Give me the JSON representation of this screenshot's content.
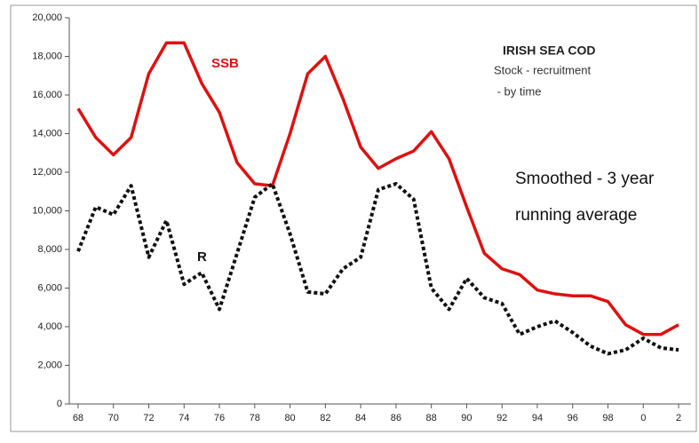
{
  "chart_data": {
    "type": "line",
    "title": "IRISH SEA COD",
    "subtitle": [
      "Stock - recruitment",
      " - by time"
    ],
    "annotation": [
      "Smoothed - 3 year",
      "running average"
    ],
    "x": [
      1968,
      1969,
      1970,
      1971,
      1972,
      1973,
      1974,
      1975,
      1976,
      1977,
      1978,
      1979,
      1980,
      1981,
      1982,
      1983,
      1984,
      1985,
      1986,
      1987,
      1988,
      1989,
      1990,
      1991,
      1992,
      1993,
      1994,
      1995,
      1996,
      1997,
      1998,
      1999,
      2000,
      2001,
      2002
    ],
    "series": [
      {
        "name": "SSB",
        "color": "#e01010",
        "dash": false,
        "values": [
          15300,
          13800,
          12900,
          13800,
          17100,
          18700,
          18700,
          16600,
          15100,
          12500,
          11400,
          11300,
          14000,
          17100,
          18000,
          15800,
          13300,
          12200,
          12700,
          13100,
          14100,
          12700,
          10200,
          7800,
          7000,
          6700,
          5900,
          5700,
          5600,
          5600,
          5300,
          4100,
          3600,
          3600,
          4100
        ]
      },
      {
        "name": "R",
        "color": "#111111",
        "dash": true,
        "values": [
          7900,
          10200,
          9800,
          11300,
          7600,
          9500,
          6200,
          6800,
          4900,
          7800,
          10700,
          11400,
          8800,
          5800,
          5700,
          7000,
          7600,
          11100,
          11400,
          10600,
          6000,
          4900,
          6500,
          5500,
          5200,
          3600,
          4000,
          4300,
          3700,
          3000,
          2600,
          2800,
          3400,
          2900,
          2800
        ]
      }
    ],
    "xlim": [
      1967.5,
      2002.5
    ],
    "xticks": [
      {
        "value": 1968,
        "label": "68"
      },
      {
        "value": 1970,
        "label": "70"
      },
      {
        "value": 1972,
        "label": "72"
      },
      {
        "value": 1974,
        "label": "74"
      },
      {
        "value": 1976,
        "label": "76"
      },
      {
        "value": 1978,
        "label": "78"
      },
      {
        "value": 1980,
        "label": "80"
      },
      {
        "value": 1982,
        "label": "82"
      },
      {
        "value": 1984,
        "label": "84"
      },
      {
        "value": 1986,
        "label": "86"
      },
      {
        "value": 1988,
        "label": "88"
      },
      {
        "value": 1990,
        "label": "90"
      },
      {
        "value": 1992,
        "label": "92"
      },
      {
        "value": 1994,
        "label": "94"
      },
      {
        "value": 1996,
        "label": "96"
      },
      {
        "value": 1998,
        "label": "98"
      },
      {
        "value": 2000,
        "label": "0"
      },
      {
        "value": 2002,
        "label": "2"
      }
    ],
    "ylim": [
      0,
      20000
    ],
    "yticks": [
      0,
      {
        "value": 2000,
        "label": "2,000"
      },
      {
        "value": 4000,
        "label": "4,000"
      },
      {
        "value": 6000,
        "label": "6,000"
      },
      {
        "value": 8000,
        "label": "8,000"
      },
      {
        "value": 10000,
        "label": "10,000"
      },
      {
        "value": 12000,
        "label": "12,000"
      },
      {
        "value": 14000,
        "label": "14,000"
      },
      {
        "value": 16000,
        "label": "16,000"
      },
      {
        "value": 18000,
        "label": "18,000"
      },
      {
        "value": 20000,
        "label": "20,000"
      }
    ],
    "grid": false
  }
}
